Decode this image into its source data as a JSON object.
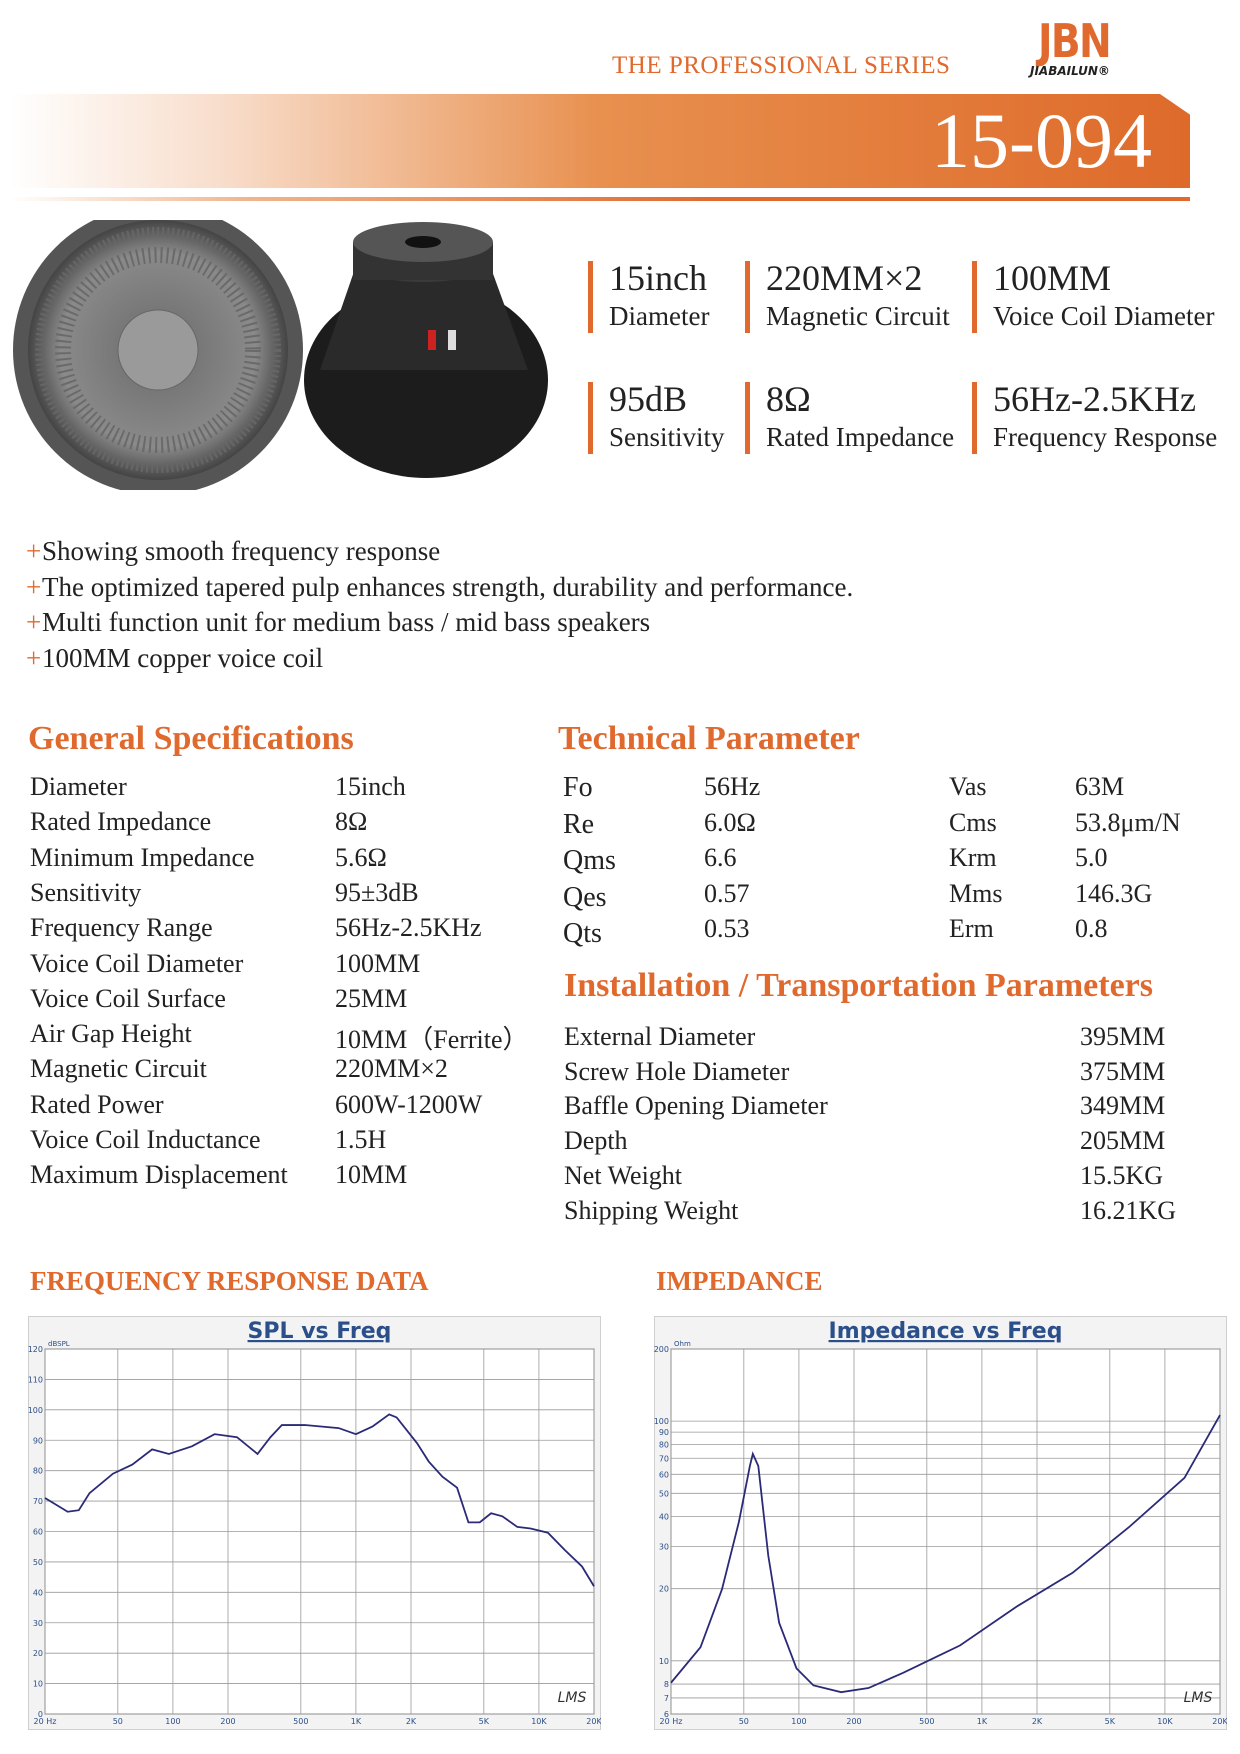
{
  "header": {
    "series": "THE PROFESSIONAL SERIES",
    "brand": "JBN",
    "brand_sub": "JIABAILUN®",
    "model": "15-094"
  },
  "highlights": [
    {
      "value": "15inch",
      "label": "Diameter"
    },
    {
      "value": "220MM×2",
      "label": "Magnetic Circuit"
    },
    {
      "value": "100MM",
      "label": "Voice Coil Diameter"
    },
    {
      "value": "95dB",
      "label": "Sensitivity"
    },
    {
      "value": "8Ω",
      "label": "Rated Impedance"
    },
    {
      "value": "56Hz-2.5KHz",
      "label": "Frequency Response"
    }
  ],
  "bullet": "+",
  "features": [
    "Showing smooth frequency response",
    "The optimized tapered pulp enhances strength, durability and performance.",
    "Multi function unit for medium bass / mid bass speakers",
    "100MM copper voice coil"
  ],
  "general_specifications": {
    "title": "General Specifications",
    "rows": [
      [
        "Diameter",
        "15inch"
      ],
      [
        "Rated Impedance",
        "8Ω"
      ],
      [
        "Minimum Impedance",
        "5.6Ω"
      ],
      [
        "Sensitivity",
        "95±3dB"
      ],
      [
        "Frequency Range",
        "56Hz-2.5KHz"
      ],
      [
        "Voice Coil Diameter",
        "100MM"
      ],
      [
        "Voice Coil Surface",
        "25MM"
      ],
      [
        "Air Gap Height",
        "10MM（Ferrite）"
      ],
      [
        "Magnetic Circuit",
        "220MM×2"
      ],
      [
        "Rated Power",
        "600W-1200W"
      ],
      [
        "Voice Coil Inductance",
        "1.5H"
      ],
      [
        "Maximum Displacement",
        "10MM"
      ]
    ]
  },
  "technical_parameter": {
    "title": "Technical Parameter",
    "rows": [
      [
        "Fo",
        "56Hz",
        "Vas",
        "63M"
      ],
      [
        "Re",
        "6.0Ω",
        "Cms",
        "53.8μm/N"
      ],
      [
        "Qms",
        "6.6",
        "Krm",
        "5.0"
      ],
      [
        "Qes",
        "0.57",
        "Mms",
        "146.3G"
      ],
      [
        "Qts",
        "0.53",
        "Erm",
        "0.8"
      ]
    ]
  },
  "installation": {
    "title": "Installation / Transportation Parameters",
    "rows": [
      [
        "External Diameter",
        "395MM"
      ],
      [
        "Screw Hole Diameter",
        "375MM"
      ],
      [
        "Baffle Opening Diameter",
        "349MM"
      ],
      [
        "Depth",
        "205MM"
      ],
      [
        "Net Weight",
        "15.5KG"
      ],
      [
        "Shipping Weight",
        "16.21KG"
      ]
    ]
  },
  "chart_data": [
    {
      "type": "line",
      "section_title": "FREQUENCY RESPONSE DATA",
      "title": "SPL vs Freq",
      "y_label": "dBSPL",
      "watermark": "LMS",
      "x": [
        20,
        26.6,
        30.6,
        35,
        47,
        60,
        77,
        95,
        127,
        169,
        224,
        290,
        341,
        394,
        525,
        805,
        1000,
        1230,
        1520,
        1670,
        2160,
        2500,
        2970,
        3570,
        4120,
        4750,
        5480,
        6310,
        7620,
        9000,
        11200,
        13800,
        17200,
        20000
      ],
      "values": [
        71,
        66.5,
        67,
        72.6,
        79,
        82,
        87,
        85.5,
        88,
        92,
        91,
        85.5,
        91,
        95,
        95,
        94,
        92,
        94.5,
        98.5,
        97.5,
        89,
        83,
        78,
        74.4,
        63,
        63,
        66,
        65,
        61.5,
        61,
        59.6,
        54,
        48.5,
        42
      ],
      "color": "#2a2a78",
      "xscale": "log",
      "xlim": [
        20,
        20000
      ],
      "ylim": [
        0,
        120
      ],
      "xticks": [
        {
          "value": 20,
          "label": "20 Hz"
        },
        50,
        100,
        200,
        500,
        {
          "value": 1000,
          "label": "1K"
        },
        {
          "value": 2000,
          "label": "2K"
        },
        {
          "value": 5000,
          "label": "5K"
        },
        {
          "value": 10000,
          "label": "10K"
        },
        {
          "value": 20000,
          "label": "20K"
        }
      ],
      "yticks": [
        0,
        10,
        20,
        30,
        40,
        50,
        60,
        70,
        80,
        90,
        100,
        110,
        120
      ],
      "grid": true
    },
    {
      "type": "line",
      "section_title": "IMPEDANCE",
      "title": "Impedance vs Freq",
      "y_label": "Ohm",
      "watermark": "LMS",
      "x": [
        20,
        29,
        38,
        47,
        54,
        56,
        60,
        68,
        78,
        97,
        120,
        170,
        240,
        370,
        760,
        1540,
        3130,
        6330,
        12800,
        20000
      ],
      "values": [
        8.1,
        11.4,
        19.9,
        38,
        65.2,
        73,
        65,
        27.5,
        14.4,
        9.3,
        7.9,
        7.4,
        7.7,
        8.9,
        11.6,
        16.8,
        23.3,
        36,
        58,
        106
      ],
      "color": "#2a2a78",
      "xscale": "log",
      "yscale": "log",
      "xlim": [
        20,
        20000
      ],
      "ylim": [
        6,
        200
      ],
      "xticks": [
        {
          "value": 20,
          "label": "20 Hz"
        },
        50,
        100,
        200,
        500,
        {
          "value": 1000,
          "label": "1K"
        },
        {
          "value": 2000,
          "label": "2K"
        },
        {
          "value": 5000,
          "label": "5K"
        },
        {
          "value": 10000,
          "label": "10K"
        },
        {
          "value": 20000,
          "label": "20K"
        }
      ],
      "yticks": [
        6,
        7,
        8,
        10,
        20,
        30,
        40,
        50,
        60,
        70,
        80,
        90,
        100,
        200
      ],
      "grid": true
    }
  ]
}
